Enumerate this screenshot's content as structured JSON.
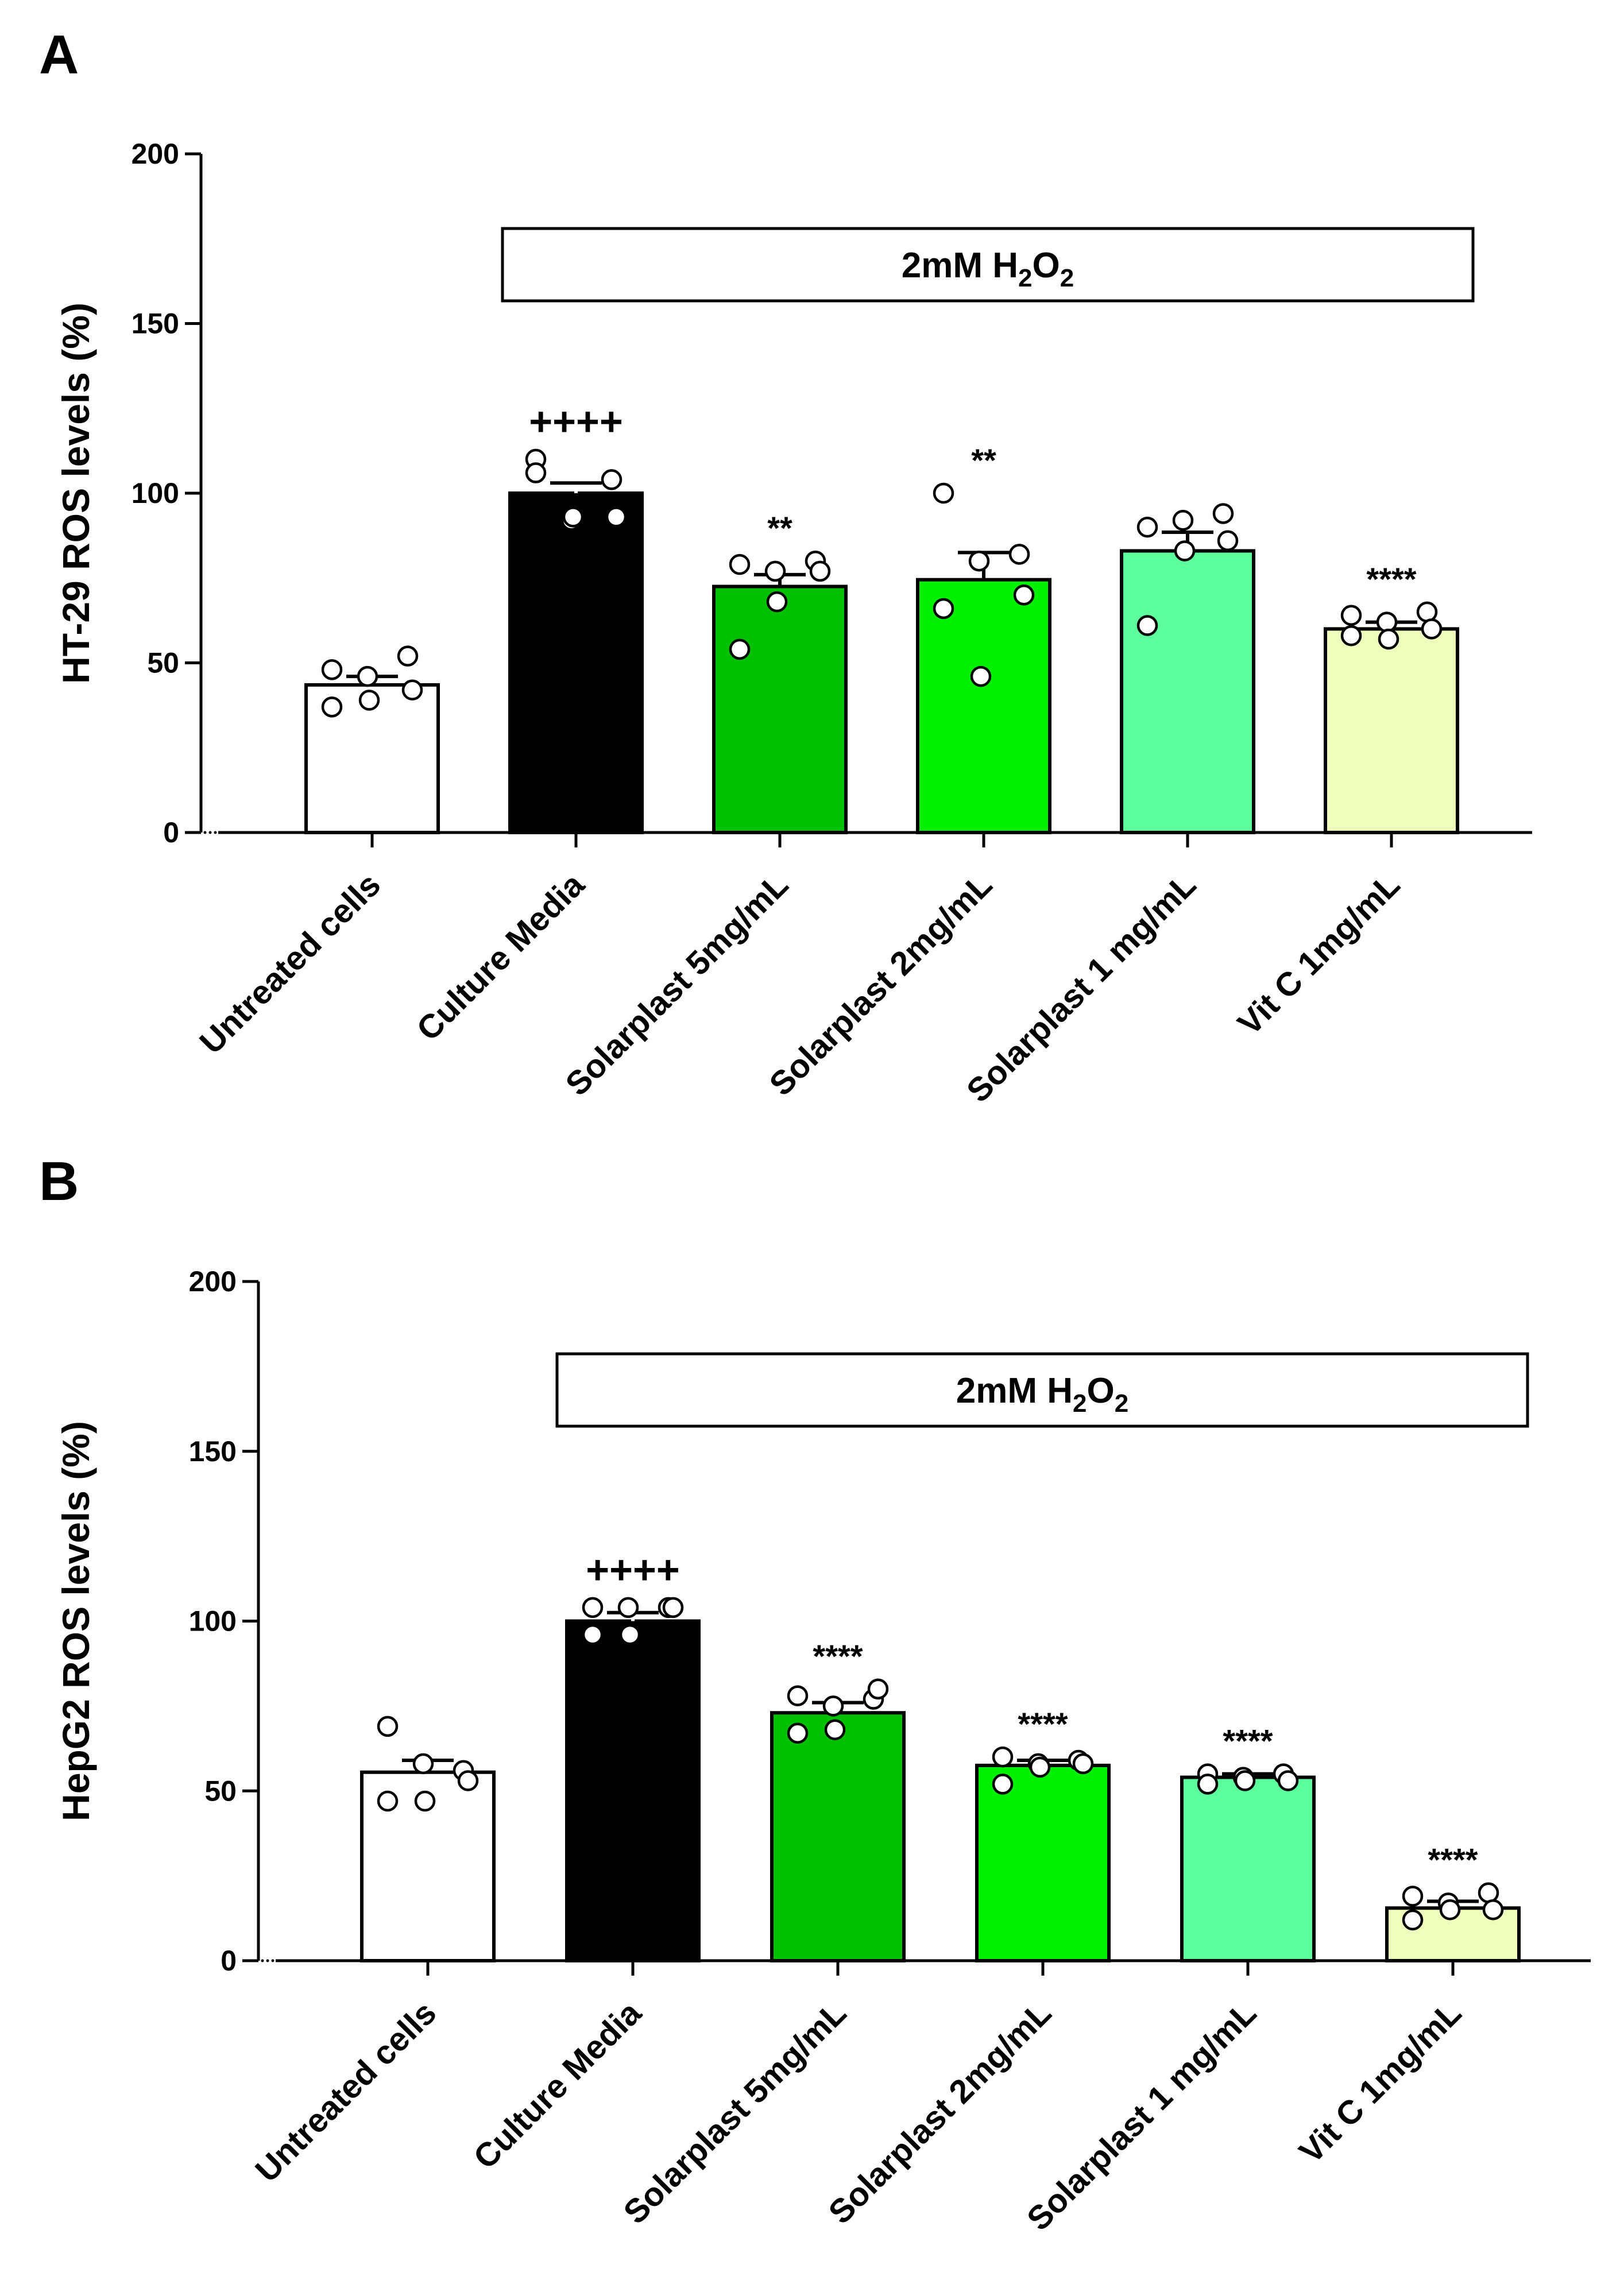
{
  "chart_data": [
    {
      "panel": "A",
      "type": "bar",
      "ylabel": "HT-29 ROS levels (%)",
      "ylim": [
        0,
        200
      ],
      "yticks": [
        0,
        50,
        100,
        150,
        200
      ],
      "treatment_box": {
        "label": "2mM H",
        "sub1": "2",
        "mid": "O",
        "sub2": "2"
      },
      "categories": [
        "Untreated cells",
        "Culture Media",
        "Solarplast 5mg/mL",
        "Solarplast 2mg/mL",
        "Solarplast  1 mg/mL",
        "Vit C 1mg/mL"
      ],
      "colors": [
        "#ffffff",
        "#000000",
        "#00c000",
        "#00f000",
        "#5cff9c",
        "#eeffbb"
      ],
      "values": [
        43.5,
        100,
        72.5,
        74.5,
        83,
        60
      ],
      "errors": [
        2.5,
        3,
        3.5,
        8,
        5.5,
        2
      ],
      "significance": [
        "",
        "++++",
        "**",
        "**",
        "",
        "****"
      ],
      "points": [
        [
          48,
          46,
          52,
          37,
          39,
          42
        ],
        [
          110,
          92,
          104,
          106,
          93,
          93
        ],
        [
          79,
          77,
          80,
          54,
          68,
          77
        ],
        [
          100,
          80,
          82,
          66,
          46,
          70
        ],
        [
          90,
          92,
          94,
          61,
          83,
          86
        ],
        [
          64,
          62,
          65,
          58,
          57,
          60
        ]
      ]
    },
    {
      "panel": "B",
      "type": "bar",
      "ylabel": "HepG2 ROS levels (%)",
      "ylim": [
        0,
        200
      ],
      "yticks": [
        0,
        50,
        100,
        150,
        200
      ],
      "treatment_box": {
        "label": "2mM H",
        "sub1": "2",
        "mid": "O",
        "sub2": "2"
      },
      "categories": [
        "Untreated cells",
        "Culture Media",
        "Solarplast 5mg/mL",
        "Solarplast 2mg/mL",
        "Solarplast  1 mg/mL",
        "Vit C 1mg/mL"
      ],
      "colors": [
        "#ffffff",
        "#000000",
        "#00c000",
        "#00f000",
        "#5cff9c",
        "#eeffbb"
      ],
      "values": [
        55.5,
        100,
        73,
        57.5,
        54,
        15.5
      ],
      "errors": [
        3.5,
        2.5,
        3,
        1.5,
        1,
        2
      ],
      "significance": [
        "",
        "++++",
        "****",
        "****",
        "****",
        "****"
      ],
      "points": [
        [
          69,
          58,
          56,
          47,
          47,
          53
        ],
        [
          104,
          104,
          104,
          96,
          96,
          104
        ],
        [
          78,
          75,
          77,
          67,
          68,
          80
        ],
        [
          60,
          58,
          59,
          52,
          57,
          58
        ],
        [
          55,
          54,
          55,
          52,
          53,
          53
        ],
        [
          19,
          17,
          20,
          12,
          15,
          15
        ]
      ]
    }
  ]
}
